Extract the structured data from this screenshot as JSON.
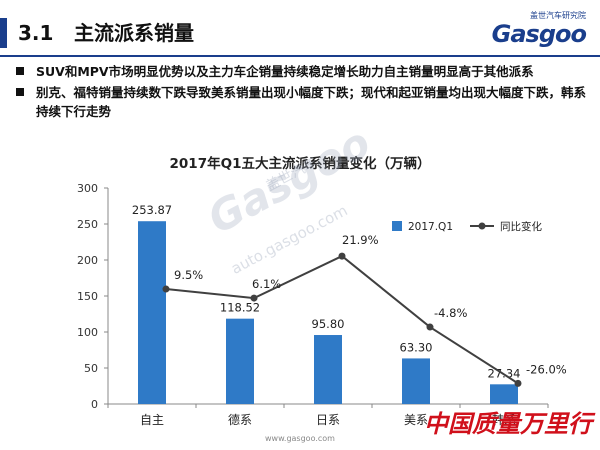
{
  "header": {
    "section_number": "3.1",
    "section_title": "主流派系销量",
    "logo_cn": "盖世汽车研究院",
    "logo_en": "Gasgoo"
  },
  "bullets": [
    "SUV和MPV市场明显优势以及主力车企销量持续稳定增长助力自主销量明显高于其他派系",
    "别克、福特销量持续数下跌导致美系销量出现小幅度下跌；现代和起亚销量均出现大幅度下跌，韩系持续下行走势"
  ],
  "watermark": {
    "cn": "盖世汽车",
    "en": "Gasgoo",
    "url": "auto.gasgoo.com"
  },
  "footer": {
    "url": "www.gasgoo.com",
    "brand": "中国质量万里行"
  },
  "colors": {
    "bar": "#2f7ac7",
    "line": "#404040",
    "accent": "#1a3e8c",
    "brand": "#d0101b"
  },
  "chart_data": {
    "type": "bar",
    "title": "2017年Q1五大主流派系销量变化（万辆）",
    "categories": [
      "自主",
      "德系",
      "日系",
      "美系",
      "韩系"
    ],
    "series": [
      {
        "name": "2017.Q1",
        "type": "bar",
        "values": [
          253.87,
          118.52,
          95.8,
          63.3,
          27.34
        ],
        "labels": [
          "253.87",
          "118.52",
          "95.80",
          "63.30",
          "27.34"
        ]
      },
      {
        "name": "同比变化",
        "type": "line",
        "values": [
          9.5,
          6.1,
          21.9,
          -4.8,
          -26.0
        ],
        "labels": [
          "9.5%",
          "6.1%",
          "21.9%",
          "-4.8%",
          "-26.0%"
        ]
      }
    ],
    "y_ticks": [
      "0",
      "50",
      "100",
      "150",
      "200",
      "250",
      "300"
    ],
    "ylim": [
      0,
      300
    ],
    "legend": "top-right",
    "grid": false
  }
}
